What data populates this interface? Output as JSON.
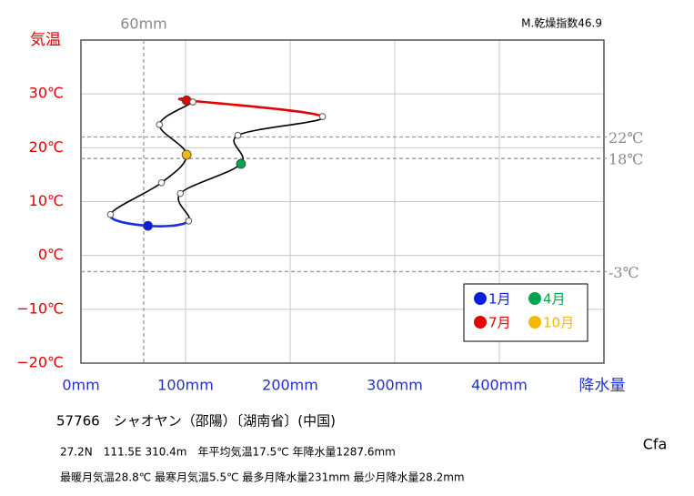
{
  "chart_data": {
    "type": "climograph",
    "y_axis_label": "気温",
    "x_axis_label": "降水量",
    "station_line": "57766　シャオヤン（邵陽）〔湖南省〕(中国)",
    "info_line1": "27.2N　111.5E 310.4m　年平均気温17.5℃ 年降水量1287.6mm",
    "info_line2": "最暖月気温28.8℃ 最寒月気温5.5℃ 最多月降水量231mm 最少月降水量28.2mm",
    "dryness_index": "M.乾燥指数46.9",
    "climate_class": "Cfa",
    "x": [
      64,
      103,
      95,
      153,
      150,
      231,
      101,
      107,
      75,
      101,
      77,
      28.2
    ],
    "values": [
      5.5,
      6.4,
      11.5,
      17.0,
      22.3,
      25.8,
      28.8,
      28.5,
      24.3,
      18.7,
      13.5,
      7.6
    ],
    "point_colors": [
      "#0a1ee0",
      null,
      null,
      "#00a550",
      null,
      null,
      "#e60000",
      null,
      null,
      "#f5b800",
      null,
      null
    ],
    "line_colors": [
      "#1a2ee0",
      "#000000",
      "#000000",
      "#000000",
      "#000000",
      "#e60000",
      "#e60000",
      "#000000",
      "#000000",
      "#000000",
      "#000000",
      "#1a2ee0"
    ],
    "legend": [
      {
        "name": "1月",
        "color": "#0a1ee0"
      },
      {
        "name": "4月",
        "color": "#00a550"
      },
      {
        "name": "7月",
        "color": "#e60000"
      },
      {
        "name": "10月",
        "color": "#f5b800"
      }
    ],
    "xlim": [
      0,
      500
    ],
    "ylim": [
      -20,
      40
    ],
    "xticks": [
      {
        "value": 0,
        "label": "0mm"
      },
      {
        "value": 100,
        "label": "100mm"
      },
      {
        "value": 200,
        "label": "200mm"
      },
      {
        "value": 300,
        "label": "300mm"
      },
      {
        "value": 400,
        "label": "400mm"
      }
    ],
    "yticks": [
      {
        "value": -20,
        "label": "−20℃"
      },
      {
        "value": -10,
        "label": "−10℃"
      },
      {
        "value": 0,
        "label": "0℃"
      },
      {
        "value": 10,
        "label": "10℃"
      },
      {
        "value": 20,
        "label": "20℃"
      },
      {
        "value": 30,
        "label": "30℃"
      }
    ],
    "ref_x": [
      {
        "value": 60,
        "label": "60mm"
      }
    ],
    "ref_y": [
      {
        "value": 22,
        "label": "22℃"
      },
      {
        "value": 18,
        "label": "18℃"
      },
      {
        "value": -3,
        "label": "-3℃"
      }
    ],
    "grid": true
  }
}
